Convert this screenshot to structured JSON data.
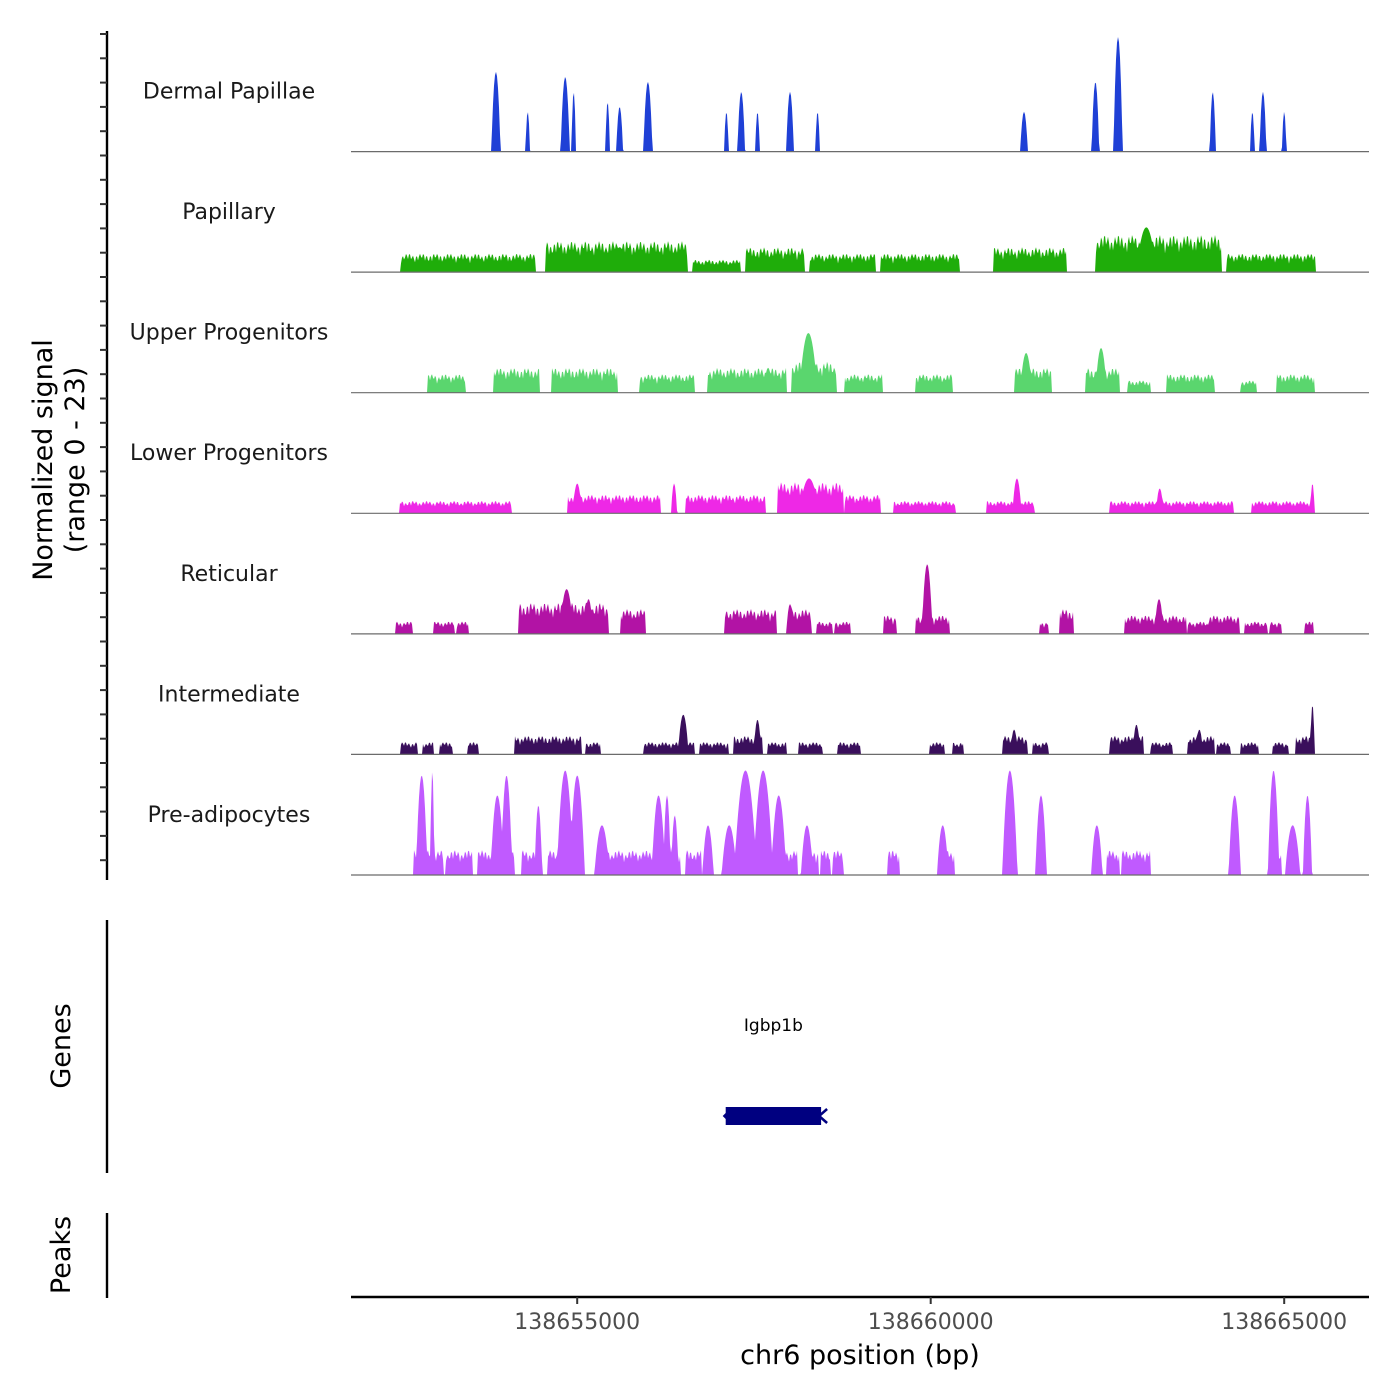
{
  "chart_data": {
    "type": "area",
    "title": "",
    "y_axis_title_line1": "Normalized signal",
    "y_axis_title_line2": "(range 0 - 23)",
    "ylim": [
      0,
      23
    ],
    "xlabel": "chr6 position (bp)",
    "xlim": [
      138651800,
      138666200
    ],
    "x_ticks": [
      138655000,
      138660000,
      138665000
    ],
    "x_tick_labels": [
      "138655000",
      "138660000",
      "138665000"
    ],
    "tracks": [
      {
        "name": "Dermal Papillae",
        "color": "#1f40d6",
        "peaks": [
          [
            138653850,
            120,
            16
          ],
          [
            138654300,
            60,
            8
          ],
          [
            138654830,
            120,
            15
          ],
          [
            138654950,
            60,
            12
          ],
          [
            138655430,
            60,
            10
          ],
          [
            138655600,
            90,
            9
          ],
          [
            138656000,
            120,
            14
          ],
          [
            138657110,
            60,
            8
          ],
          [
            138657320,
            100,
            12
          ],
          [
            138657550,
            60,
            8
          ],
          [
            138658010,
            100,
            12
          ],
          [
            138658400,
            60,
            8
          ],
          [
            138661320,
            100,
            8
          ],
          [
            138662330,
            100,
            14
          ],
          [
            138662650,
            120,
            23
          ],
          [
            138663990,
            80,
            12
          ],
          [
            138664550,
            60,
            8
          ],
          [
            138664700,
            90,
            12
          ],
          [
            138665000,
            60,
            8
          ]
        ]
      },
      {
        "name": "Papillary",
        "color": "#1fad0a",
        "segments": [
          [
            138652520,
            138654400,
            3
          ],
          [
            138654570,
            138656550,
            5
          ],
          [
            138656650,
            138657300,
            2
          ],
          [
            138657400,
            138658200,
            4
          ],
          [
            138658300,
            138659200,
            3
          ],
          [
            138659300,
            138660400,
            3
          ],
          [
            138660900,
            138661900,
            4
          ],
          [
            138662350,
            138664100,
            6
          ],
          [
            138664200,
            138665430,
            3
          ]
        ],
        "peaks": [
          [
            138663050,
            260,
            9
          ],
          [
            138662850,
            200,
            6
          ],
          [
            138655600,
            220,
            5
          ]
        ]
      },
      {
        "name": "Upper Progenitors",
        "color": "#5ad66e",
        "segments": [
          [
            138652900,
            138653400,
            3
          ],
          [
            138653830,
            138654450,
            4
          ],
          [
            138654650,
            138655550,
            4
          ],
          [
            138655900,
            138656650,
            3
          ],
          [
            138656850,
            138657950,
            4
          ],
          [
            138658050,
            138658650,
            5
          ],
          [
            138658800,
            138659300,
            3
          ],
          [
            138659800,
            138660300,
            3
          ],
          [
            138661200,
            138661700,
            4
          ],
          [
            138662200,
            138662650,
            4
          ],
          [
            138662800,
            138663100,
            2
          ],
          [
            138663350,
            138664000,
            3
          ],
          [
            138664400,
            138664600,
            2
          ],
          [
            138664900,
            138665420,
            3
          ]
        ],
        "peaks": [
          [
            138658270,
            240,
            12
          ],
          [
            138661350,
            160,
            8
          ],
          [
            138662410,
            150,
            9
          ],
          [
            138657700,
            120,
            5
          ]
        ]
      },
      {
        "name": "Lower Progenitors",
        "color": "#ee28e6",
        "segments": [
          [
            138652500,
            138654050,
            2
          ],
          [
            138654870,
            138656170,
            3
          ],
          [
            138656550,
            138657650,
            3
          ],
          [
            138657850,
            138658750,
            5
          ],
          [
            138658800,
            138659270,
            3
          ],
          [
            138659490,
            138660330,
            2
          ],
          [
            138660800,
            138661450,
            2
          ],
          [
            138662550,
            138663200,
            2
          ],
          [
            138663300,
            138664270,
            2
          ],
          [
            138664550,
            138665420,
            2
          ]
        ],
        "peaks": [
          [
            138655000,
            120,
            6
          ],
          [
            138656370,
            80,
            6
          ],
          [
            138658280,
            260,
            7
          ],
          [
            138661220,
            120,
            7
          ],
          [
            138663240,
            100,
            5
          ],
          [
            138665400,
            60,
            6
          ]
        ]
      },
      {
        "name": "Reticular",
        "color": "#b213a5",
        "segments": [
          [
            138652450,
            138652650,
            2
          ],
          [
            138652980,
            138653250,
            2
          ],
          [
            138653300,
            138653450,
            2
          ],
          [
            138654180,
            138655430,
            5
          ],
          [
            138655620,
            138655950,
            4
          ],
          [
            138657100,
            138657800,
            4
          ],
          [
            138658000,
            138658300,
            4
          ],
          [
            138658400,
            138658600,
            2
          ],
          [
            138658650,
            138658850,
            2
          ],
          [
            138659350,
            138659500,
            3
          ],
          [
            138659800,
            138660250,
            3
          ],
          [
            138661550,
            138661650,
            2
          ],
          [
            138661830,
            138662000,
            4
          ],
          [
            138662750,
            138663600,
            3
          ],
          [
            138663650,
            138663930,
            2
          ],
          [
            138663950,
            138664350,
            3
          ],
          [
            138664450,
            138664750,
            2
          ],
          [
            138664800,
            138664950,
            2
          ],
          [
            138665300,
            138665400,
            2
          ]
        ],
        "peaks": [
          [
            138654850,
            180,
            9
          ],
          [
            138655160,
            120,
            7
          ],
          [
            138658010,
            100,
            6
          ],
          [
            138659950,
            140,
            14
          ],
          [
            138663230,
            120,
            7
          ]
        ]
      },
      {
        "name": "Intermediate",
        "color": "#3a0f5c",
        "segments": [
          [
            138652520,
            138652720,
            2
          ],
          [
            138652820,
            138652950,
            2
          ],
          [
            138653060,
            138653220,
            2
          ],
          [
            138653460,
            138653590,
            2
          ],
          [
            138654120,
            138655050,
            3
          ],
          [
            138655130,
            138655320,
            2
          ],
          [
            138655950,
            138656650,
            2
          ],
          [
            138656750,
            138657120,
            2
          ],
          [
            138657220,
            138657600,
            3
          ],
          [
            138657700,
            138657950,
            2
          ],
          [
            138658150,
            138658450,
            2
          ],
          [
            138658700,
            138659000,
            2
          ],
          [
            138660000,
            138660180,
            2
          ],
          [
            138660320,
            138660450,
            2
          ],
          [
            138661030,
            138661350,
            3
          ],
          [
            138661450,
            138661650,
            2
          ],
          [
            138662540,
            138663000,
            3
          ],
          [
            138663130,
            138663400,
            2
          ],
          [
            138663650,
            138664000,
            3
          ],
          [
            138664050,
            138664220,
            2
          ],
          [
            138664400,
            138664620,
            2
          ],
          [
            138664850,
            138665050,
            2
          ],
          [
            138665180,
            138665420,
            3
          ]
        ],
        "peaks": [
          [
            138656500,
            140,
            8
          ],
          [
            138657550,
            100,
            7
          ],
          [
            138661180,
            100,
            5
          ],
          [
            138662910,
            100,
            6
          ],
          [
            138663800,
            100,
            5
          ],
          [
            138665400,
            60,
            10
          ]
        ]
      },
      {
        "name": "Pre-adipocytes",
        "color": "#c05aff",
        "segments": [
          [
            138652700,
            138652950,
            4
          ],
          [
            138652960,
            138653100,
            4
          ],
          [
            138653150,
            138653500,
            4
          ],
          [
            138653600,
            138653750,
            4
          ],
          [
            138653750,
            138654100,
            4
          ],
          [
            138654220,
            138654500,
            4
          ],
          [
            138654600,
            138654950,
            4
          ],
          [
            138655400,
            138656150,
            4
          ],
          [
            138656250,
            138656450,
            4
          ],
          [
            138656550,
            138656750,
            4
          ],
          [
            138657900,
            138658100,
            4
          ],
          [
            138658250,
            138658400,
            4
          ],
          [
            138658450,
            138658570,
            4
          ],
          [
            138658630,
            138658750,
            4
          ],
          [
            138659400,
            138659550,
            4
          ],
          [
            138660200,
            138660320,
            4
          ],
          [
            138662500,
            138662650,
            4
          ],
          [
            138662720,
            138662950,
            4
          ],
          [
            138662970,
            138663100,
            4
          ],
          [
            138664800,
            138664950,
            4
          ]
        ],
        "peaks": [
          [
            138652800,
            150,
            20
          ],
          [
            138652950,
            50,
            21
          ],
          [
            138653870,
            180,
            16
          ],
          [
            138654000,
            150,
            20
          ],
          [
            138654450,
            100,
            14
          ],
          [
            138654830,
            220,
            21
          ],
          [
            138655000,
            200,
            20
          ],
          [
            138655350,
            200,
            10
          ],
          [
            138656150,
            180,
            16
          ],
          [
            138656270,
            100,
            16
          ],
          [
            138656380,
            100,
            12
          ],
          [
            138656850,
            150,
            10
          ],
          [
            138657150,
            200,
            10
          ],
          [
            138657380,
            300,
            21
          ],
          [
            138657630,
            260,
            21
          ],
          [
            138657850,
            200,
            16
          ],
          [
            138658250,
            160,
            10
          ],
          [
            138660170,
            150,
            10
          ],
          [
            138661120,
            200,
            21
          ],
          [
            138661560,
            150,
            16
          ],
          [
            138662350,
            150,
            10
          ],
          [
            138664300,
            160,
            16
          ],
          [
            138665120,
            200,
            10
          ],
          [
            138665330,
            120,
            16
          ],
          [
            138664850,
            150,
            21
          ]
        ]
      }
    ],
    "genes_title": "Genes",
    "gene": {
      "name": "Igbp1b",
      "start": 138657100,
      "end": 138658450,
      "strand": "-",
      "color": "#000080"
    },
    "peaks_title": "Peaks"
  }
}
